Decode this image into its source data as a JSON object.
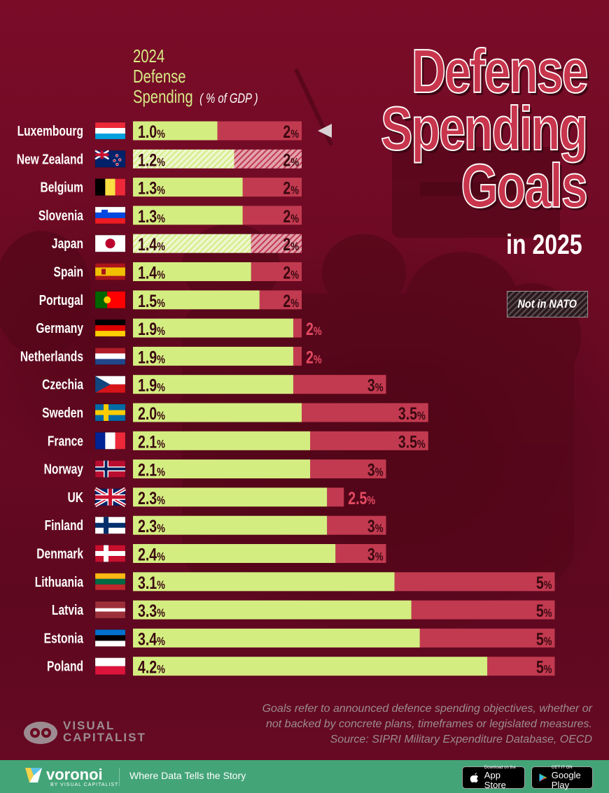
{
  "title": {
    "line1": "Defense",
    "line2": "Spending",
    "line3": "Goals",
    "subtitle": "in 2025"
  },
  "legend": {
    "not_in_nato": "Not in NATO"
  },
  "header": {
    "line1": "2024",
    "line2": "Defense",
    "line3": "Spending",
    "unit": "( % of GDP )"
  },
  "colors": {
    "spending": "#d4ed81",
    "spending_hatched": "#e8f3c1",
    "goal": "#c23a50",
    "goal_hatched": "#d98a98",
    "label_text": "#3a0810",
    "goal_text_outside": "#e24a62",
    "background": "#6b0a22"
  },
  "chart_data": {
    "type": "bar",
    "orientation": "horizontal",
    "title": "Defense Spending Goals in 2025",
    "subtitle": "2024 Defense Spending ( % of GDP )",
    "unit_suffix": "%",
    "categories": [
      "Luxembourg",
      "New Zealand",
      "Belgium",
      "Slovenia",
      "Japan",
      "Spain",
      "Portugal",
      "Germany",
      "Netherlands",
      "Czechia",
      "Sweden",
      "France",
      "Norway",
      "UK",
      "Finland",
      "Denmark",
      "Lithuania",
      "Latvia",
      "Estonia",
      "Poland"
    ],
    "flags": [
      "lu",
      "nz",
      "be",
      "si",
      "jp",
      "es",
      "pt",
      "de",
      "nl",
      "cz",
      "se",
      "fr",
      "no",
      "gb",
      "fi",
      "dk",
      "lt",
      "lv",
      "ee",
      "pl"
    ],
    "not_in_nato": [
      false,
      true,
      false,
      false,
      true,
      false,
      false,
      false,
      false,
      false,
      false,
      false,
      false,
      false,
      false,
      false,
      false,
      false,
      false,
      false
    ],
    "series": [
      {
        "name": "2024 Defense Spending",
        "values": [
          1.0,
          1.2,
          1.3,
          1.3,
          1.4,
          1.4,
          1.5,
          1.9,
          1.9,
          1.9,
          2.0,
          2.1,
          2.1,
          2.3,
          2.3,
          2.4,
          3.1,
          3.3,
          3.4,
          4.2
        ],
        "labels": [
          "1.0",
          "1.2",
          "1.3",
          "1.3",
          "1.4",
          "1.4",
          "1.5",
          "1.9",
          "1.9",
          "1.9",
          "2.0",
          "2.1",
          "2.1",
          "2.3",
          "2.3",
          "2.4",
          "3.1",
          "3.3",
          "3.4",
          "4.2"
        ]
      },
      {
        "name": "Goal",
        "values": [
          2,
          2,
          2,
          2,
          2,
          2,
          2,
          2,
          2,
          3,
          3.5,
          3.5,
          3,
          2.5,
          3,
          3,
          5,
          5,
          5,
          5
        ],
        "labels": [
          "2",
          "2",
          "2",
          "2",
          "2",
          "2",
          "2",
          "2",
          "2",
          "3",
          "3.5",
          "3.5",
          "3",
          "2.5",
          "3",
          "3",
          "5",
          "5",
          "5",
          "5"
        ]
      }
    ],
    "xlim": [
      0,
      5
    ]
  },
  "footnote": {
    "line1": "Goals refer to announced defence spending objectives, whether or",
    "line2": "not backed by concrete plans, timeframes or legislated measures.",
    "line3": "Source: SIPRI Military Expenditure Database, OECD"
  },
  "brand": {
    "vc_line1": "VISUAL",
    "vc_line2": "CAPITALIST",
    "voronoi": "voronoi",
    "voronoi_by": "BY VISUAL CAPITALIST",
    "tagline": "Where Data Tells the Story",
    "app_store_small": "Download on the",
    "app_store_big": "App Store",
    "google_play_small": "GET IT ON",
    "google_play_big": "Google Play"
  }
}
